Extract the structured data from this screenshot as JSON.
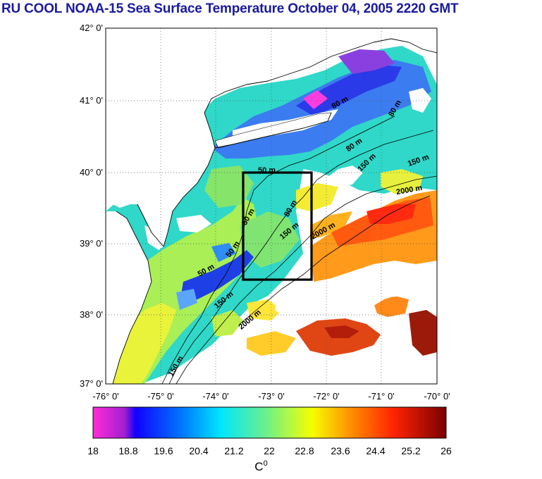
{
  "title": "RU COOL  NOAA-15 Sea Surface Temperature October 04, 2005 2220 GMT",
  "map": {
    "lat_labels": [
      "42° 0'",
      "41° 0'",
      "40° 0'",
      "39° 0'",
      "38° 0'",
      "37° 0'"
    ],
    "lon_labels": [
      "-76° 0'",
      "-75° 0'",
      "-74° 0'",
      "-73° 0'",
      "-72° 0'",
      "-71° 0'",
      "-70° 0'"
    ],
    "grid": true,
    "box": {
      "lat_range": [
        38.5,
        40.0
      ],
      "lon_range": [
        -73.45,
        -72.25
      ]
    },
    "contour_labels": [
      "50 m",
      "50 m",
      "50 m",
      "80 m",
      "80 m",
      "80 m",
      "80 m",
      "150 m",
      "150 m",
      "150 m",
      "150 m",
      "2000 m",
      "2000 m",
      "2000 m",
      "50 m",
      "150 m"
    ]
  },
  "colorbar": {
    "ticks": [
      "18",
      "18.8",
      "19.6",
      "20.4",
      "21.2",
      "22",
      "22.8",
      "23.6",
      "24.4",
      "25.2",
      "26"
    ],
    "unit": "C",
    "unit_sup": "0",
    "range": [
      18,
      26
    ]
  },
  "colors": {
    "title": "#1a1aa0",
    "land": "#ffffff",
    "frame": "#000000"
  }
}
